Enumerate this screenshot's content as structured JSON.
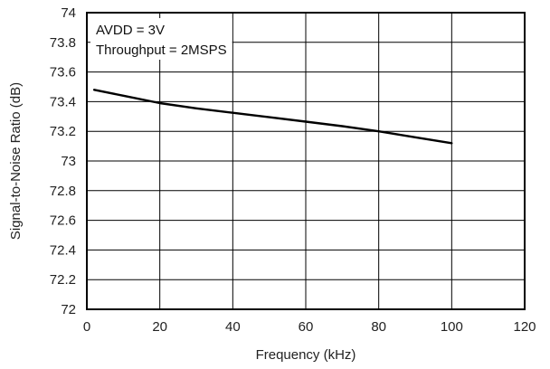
{
  "chart_data": {
    "type": "line",
    "title": "",
    "xlabel": "Frequency (kHz)",
    "ylabel": "Signal-to-Noise Ratio (dB)",
    "xlim": [
      0,
      120
    ],
    "ylim": [
      72,
      74
    ],
    "xticks": [
      0,
      20,
      40,
      60,
      80,
      100,
      120
    ],
    "yticks": [
      72,
      72.2,
      72.4,
      72.6,
      72.8,
      73,
      73.2,
      73.4,
      73.6,
      73.8,
      74
    ],
    "xtick_labels": [
      "0",
      "20",
      "40",
      "60",
      "80",
      "100",
      "120"
    ],
    "ytick_labels": [
      "72",
      "72.2",
      "72.4",
      "72.6",
      "72.8",
      "73",
      "73.2",
      "73.4",
      "73.6",
      "73.8",
      "74"
    ],
    "grid": true,
    "annotations": [
      "AVDD = 3V",
      "Throughput = 2MSPS"
    ],
    "series": [
      {
        "x": [
          2,
          10,
          20,
          30,
          40,
          50,
          60,
          70,
          80,
          90,
          100
        ],
        "y": [
          73.48,
          73.44,
          73.39,
          73.355,
          73.325,
          73.295,
          73.265,
          73.235,
          73.2,
          73.16,
          73.12
        ],
        "color": "#000000"
      }
    ]
  }
}
